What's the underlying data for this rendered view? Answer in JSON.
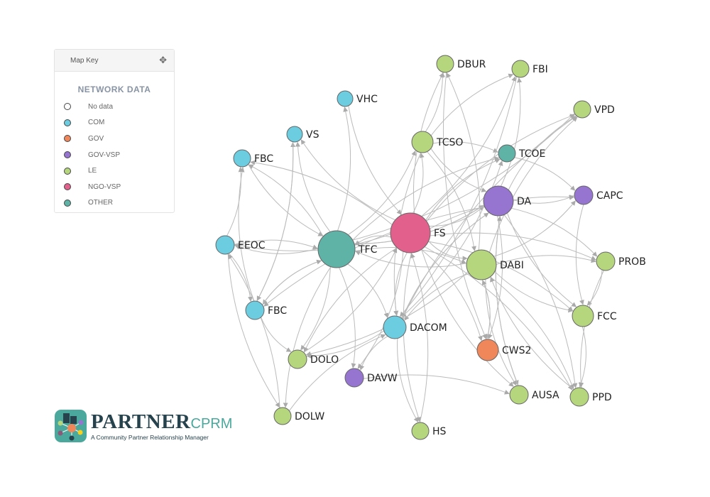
{
  "map_key": {
    "header": "Map Key",
    "move_icon": "move-arrows-icon",
    "title": "NETWORK DATA",
    "items": [
      {
        "label": "No data",
        "color": "#ffffff"
      },
      {
        "label": "COM",
        "color": "#6ccde0"
      },
      {
        "label": "GOV",
        "color": "#f0875a"
      },
      {
        "label": "GOV-VSP",
        "color": "#9575d0"
      },
      {
        "label": "LE",
        "color": "#b5d67c"
      },
      {
        "label": "NGO-VSP",
        "color": "#e2608c"
      },
      {
        "label": "OTHER",
        "color": "#5fb3a6"
      }
    ]
  },
  "logo": {
    "wordmark": "PARTNER",
    "suffix": "CPRM",
    "tagline": "A Community Partner Relationship Manager"
  },
  "nodes": [
    {
      "id": "DBUR",
      "type": "LE"
    },
    {
      "id": "FBI",
      "type": "LE"
    },
    {
      "id": "VHC",
      "type": "COM"
    },
    {
      "id": "VPD",
      "type": "LE"
    },
    {
      "id": "VS",
      "type": "COM"
    },
    {
      "id": "TCSO",
      "type": "LE"
    },
    {
      "id": "TCOE",
      "type": "OTHER"
    },
    {
      "id": "FBC",
      "type": "COM"
    },
    {
      "id": "DA",
      "type": "GOV-VSP"
    },
    {
      "id": "CAPC",
      "type": "GOV-VSP"
    },
    {
      "id": "FS",
      "type": "NGO-VSP"
    },
    {
      "id": "TFC",
      "type": "OTHER"
    },
    {
      "id": "EEOC",
      "type": "COM"
    },
    {
      "id": "PROB",
      "type": "LE"
    },
    {
      "id": "DABI",
      "type": "LE"
    },
    {
      "id": "FBC",
      "type": "COM"
    },
    {
      "id": "FCC",
      "type": "LE"
    },
    {
      "id": "DACOM",
      "type": "COM"
    },
    {
      "id": "CWS2",
      "type": "GOV"
    },
    {
      "id": "DOLO",
      "type": "LE"
    },
    {
      "id": "DAVW",
      "type": "GOV-VSP"
    },
    {
      "id": "AUSA",
      "type": "LE"
    },
    {
      "id": "PPD",
      "type": "LE"
    },
    {
      "id": "DOLW",
      "type": "LE"
    },
    {
      "id": "HS",
      "type": "LE"
    }
  ],
  "edges": [
    [
      10,
      0
    ],
    [
      10,
      1
    ],
    [
      10,
      3
    ],
    [
      10,
      5
    ],
    [
      10,
      6
    ],
    [
      10,
      8
    ],
    [
      10,
      9
    ],
    [
      10,
      11
    ],
    [
      10,
      13
    ],
    [
      10,
      14
    ],
    [
      10,
      16
    ],
    [
      10,
      17
    ],
    [
      10,
      18
    ],
    [
      10,
      19
    ],
    [
      10,
      20
    ],
    [
      10,
      21
    ],
    [
      10,
      22
    ],
    [
      10,
      24
    ],
    [
      10,
      4
    ],
    [
      10,
      7
    ],
    [
      10,
      12
    ],
    [
      11,
      2
    ],
    [
      11,
      4
    ],
    [
      11,
      7
    ],
    [
      11,
      12
    ],
    [
      11,
      15
    ],
    [
      11,
      19
    ],
    [
      11,
      23
    ],
    [
      11,
      17
    ],
    [
      11,
      8
    ],
    [
      11,
      14
    ],
    [
      11,
      5
    ],
    [
      11,
      6
    ],
    [
      11,
      3
    ],
    [
      11,
      20
    ],
    [
      8,
      1
    ],
    [
      8,
      3
    ],
    [
      8,
      9
    ],
    [
      8,
      13
    ],
    [
      8,
      16
    ],
    [
      8,
      18
    ],
    [
      8,
      21
    ],
    [
      8,
      22
    ],
    [
      8,
      17
    ],
    [
      8,
      11
    ],
    [
      8,
      15
    ],
    [
      14,
      3
    ],
    [
      14,
      9
    ],
    [
      14,
      13
    ],
    [
      14,
      16
    ],
    [
      14,
      18
    ],
    [
      14,
      21
    ],
    [
      14,
      22
    ],
    [
      14,
      17
    ],
    [
      14,
      11
    ],
    [
      14,
      0
    ],
    [
      14,
      19
    ],
    [
      5,
      0
    ],
    [
      5,
      6
    ],
    [
      5,
      8
    ],
    [
      5,
      14
    ],
    [
      5,
      17
    ],
    [
      5,
      1
    ],
    [
      17,
      24
    ],
    [
      17,
      19
    ],
    [
      17,
      20
    ],
    [
      17,
      8
    ],
    [
      17,
      6
    ],
    [
      17,
      3
    ],
    [
      12,
      7
    ],
    [
      12,
      15
    ],
    [
      12,
      23
    ],
    [
      12,
      11
    ],
    [
      15,
      4
    ],
    [
      15,
      7
    ],
    [
      15,
      19
    ],
    [
      15,
      11
    ],
    [
      7,
      11
    ],
    [
      4,
      15
    ],
    [
      2,
      10
    ],
    [
      13,
      16
    ],
    [
      9,
      16
    ],
    [
      16,
      22
    ],
    [
      13,
      22
    ],
    [
      20,
      21
    ],
    [
      23,
      12
    ],
    [
      23,
      17
    ],
    [
      18,
      14
    ],
    [
      6,
      9
    ],
    [
      24,
      10
    ],
    [
      21,
      8
    ],
    [
      0,
      18
    ],
    [
      1,
      17
    ],
    [
      19,
      10
    ],
    [
      22,
      14
    ]
  ]
}
